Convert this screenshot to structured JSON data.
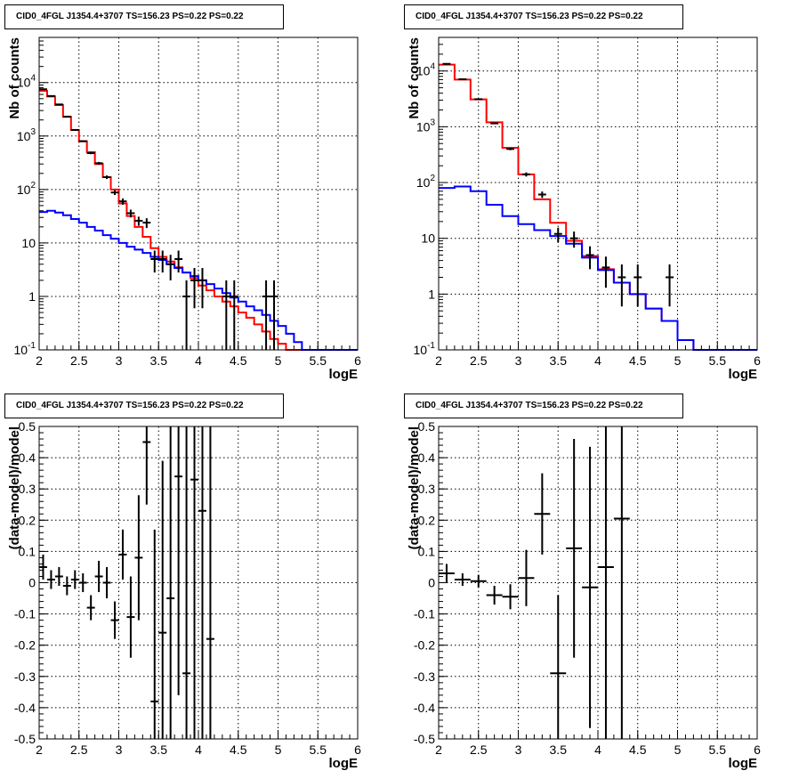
{
  "chart_data": [
    {
      "type": "line",
      "title": "CID0_4FGL J1354.4+3707 TS=156.23 PS=0.22 PS=0.22",
      "xlabel": "logE",
      "ylabel": "Nb of counts",
      "xlim": [
        2,
        6
      ],
      "ylim": [
        0.1,
        70000
      ],
      "yscale": "log",
      "grid": true,
      "x_ticks": [
        "2",
        "2.5",
        "3",
        "3.5",
        "4",
        "4.5",
        "5",
        "5.5",
        "6"
      ],
      "y_ticks": [
        "10^-1",
        "1",
        "10",
        "10^2",
        "10^3",
        "10^4"
      ],
      "series": [
        {
          "kind": "step",
          "color": "#ff0000",
          "bin_width": 0.1,
          "x": [
            2.0,
            2.1,
            2.2,
            2.3,
            2.4,
            2.5,
            2.6,
            2.7,
            2.8,
            2.9,
            3.0,
            3.1,
            3.2,
            3.3,
            3.4,
            3.5,
            3.6,
            3.7,
            3.8,
            3.9,
            4.0,
            4.1,
            4.2,
            4.3,
            4.4,
            4.5,
            4.6,
            4.7,
            4.8,
            4.9,
            5.0,
            5.1,
            5.2,
            5.3,
            5.4,
            5.5,
            5.6,
            5.7,
            5.8,
            5.9
          ],
          "values": [
            7000,
            5500,
            3800,
            2300,
            1300,
            800,
            500,
            300,
            170,
            100,
            55,
            32,
            20,
            13,
            8,
            5.5,
            4.5,
            3.5,
            2.8,
            2.2,
            1.6,
            1.3,
            1.0,
            0.8,
            0.65,
            0.5,
            0.4,
            0.3,
            0.22,
            0.16,
            0.13,
            0.1,
            0.1,
            0.1,
            0.1,
            0.1,
            0.1,
            0.1,
            0.1,
            0.1
          ]
        },
        {
          "kind": "step",
          "color": "#0000ff",
          "bin_width": 0.1,
          "x": [
            2.0,
            2.1,
            2.2,
            2.3,
            2.4,
            2.5,
            2.6,
            2.7,
            2.8,
            2.9,
            3.0,
            3.1,
            3.2,
            3.3,
            3.4,
            3.5,
            3.6,
            3.7,
            3.8,
            3.9,
            4.0,
            4.1,
            4.2,
            4.3,
            4.4,
            4.5,
            4.6,
            4.7,
            4.8,
            4.9,
            5.0,
            5.1,
            5.2,
            5.3,
            5.4,
            5.5,
            5.6,
            5.7,
            5.8,
            5.9
          ],
          "values": [
            38,
            40,
            37,
            33,
            28,
            24,
            20,
            17,
            14,
            12,
            10,
            8.5,
            7.5,
            6.5,
            5.5,
            4.8,
            4.0,
            3.4,
            2.8,
            2.4,
            2.0,
            1.7,
            1.4,
            1.15,
            0.95,
            0.8,
            0.65,
            0.55,
            0.45,
            0.35,
            0.28,
            0.2,
            0.14,
            0.1,
            0.1,
            0.1,
            0.1,
            0.1,
            0.1,
            0.1
          ]
        },
        {
          "kind": "points",
          "color": "#000000",
          "x": [
            2.05,
            2.15,
            2.25,
            2.35,
            2.45,
            2.55,
            2.65,
            2.75,
            2.85,
            2.95,
            3.05,
            3.15,
            3.25,
            3.35,
            3.45,
            3.55,
            3.65,
            3.75,
            3.85,
            3.95,
            4.05,
            4.15,
            4.25,
            4.35,
            4.45,
            4.55,
            4.65,
            4.75,
            4.85,
            4.95
          ],
          "values": [
            7500,
            5600,
            3900,
            2300,
            1300,
            800,
            480,
            310,
            170,
            88,
            60,
            36,
            26,
            24,
            5,
            5,
            4,
            5,
            1,
            2,
            2,
            null,
            null,
            1,
            1,
            null,
            null,
            null,
            1,
            1
          ],
          "errors": [
            90,
            75,
            62,
            48,
            36,
            28,
            22,
            18,
            13,
            9,
            8,
            6,
            5,
            5,
            2.2,
            2.2,
            2,
            2.2,
            1,
            1.4,
            1.4,
            null,
            null,
            1,
            1,
            null,
            null,
            null,
            1,
            1
          ]
        }
      ]
    },
    {
      "type": "line",
      "title": "CID0_4FGL J1354.4+3707 TS=156.23 PS=0.22 PS=0.22",
      "xlabel": "logE",
      "ylabel": "Nb of counts",
      "xlim": [
        2,
        6
      ],
      "ylim": [
        0.1,
        40000
      ],
      "yscale": "log",
      "grid": true,
      "x_ticks": [
        "2",
        "2.5",
        "3",
        "3.5",
        "4",
        "4.5",
        "5",
        "5.5",
        "6"
      ],
      "y_ticks": [
        "10^-1",
        "1",
        "10",
        "10^2",
        "10^3",
        "10^4"
      ],
      "series": [
        {
          "kind": "step",
          "color": "#ff0000",
          "bin_width": 0.2,
          "x": [
            2.0,
            2.2,
            2.4,
            2.6,
            2.8,
            3.0,
            3.2,
            3.4,
            3.6,
            3.8,
            4.0,
            4.2,
            4.4,
            4.6,
            4.8,
            5.0,
            5.2,
            5.4,
            5.6,
            5.8
          ],
          "values": [
            13000,
            7000,
            3100,
            1200,
            420,
            140,
            50,
            19,
            9,
            4.8,
            2.8,
            1.6,
            1.0,
            0.55,
            0.33,
            0.15,
            0.1,
            0.1,
            0.1,
            0.1
          ]
        },
        {
          "kind": "step",
          "color": "#0000ff",
          "bin_width": 0.2,
          "x": [
            2.0,
            2.2,
            2.4,
            2.6,
            2.8,
            3.0,
            3.2,
            3.4,
            3.6,
            3.8,
            4.0,
            4.2,
            4.4,
            4.6,
            4.8,
            5.0,
            5.2,
            5.4,
            5.6,
            5.8
          ],
          "values": [
            80,
            85,
            70,
            40,
            25,
            18,
            14,
            11,
            8,
            4.5,
            2.7,
            1.6,
            1.0,
            0.55,
            0.33,
            0.15,
            0.1,
            0.1,
            0.1,
            0.1
          ]
        },
        {
          "kind": "points",
          "color": "#000000",
          "x": [
            2.1,
            2.3,
            2.5,
            2.7,
            2.9,
            3.1,
            3.3,
            3.5,
            3.7,
            3.9,
            4.1,
            4.3,
            4.5,
            4.7,
            4.9
          ],
          "values": [
            13400,
            7100,
            3120,
            1150,
            400,
            140,
            61,
            12,
            10,
            5,
            3,
            2,
            2,
            null,
            2
          ],
          "errors": [
            116,
            84,
            56,
            34,
            20,
            12,
            8,
            3.5,
            3.2,
            2.2,
            1.7,
            1.4,
            1.4,
            null,
            1.4
          ]
        }
      ]
    },
    {
      "type": "scatter",
      "title": "CID0_4FGL J1354.4+3707 TS=156.23 PS=0.22 PS=0.22",
      "xlabel": "logE",
      "ylabel": "(data-model)/model",
      "xlim": [
        2,
        6
      ],
      "ylim": [
        -0.5,
        0.5
      ],
      "grid": true,
      "x_ticks": [
        "2",
        "2.5",
        "3",
        "3.5",
        "4",
        "4.5",
        "5",
        "5.5",
        "6"
      ],
      "y_ticks": [
        "-0.5",
        "-0.4",
        "-0.3",
        "-0.2",
        "-0.1",
        "0",
        "0.1",
        "0.2",
        "0.3",
        "0.4",
        "0.5"
      ],
      "series": [
        {
          "kind": "points",
          "color": "#000000",
          "x_half_width": 0.05,
          "x": [
            2.05,
            2.15,
            2.25,
            2.35,
            2.45,
            2.55,
            2.65,
            2.75,
            2.85,
            2.95,
            3.05,
            3.15,
            3.25,
            3.35,
            3.45,
            3.55,
            3.65,
            3.75,
            3.85,
            3.95,
            4.05,
            4.15
          ],
          "values": [
            0.05,
            0.01,
            0.02,
            -0.01,
            0.01,
            0.0,
            -0.08,
            0.02,
            0.0,
            -0.12,
            0.09,
            -0.11,
            0.08,
            0.45,
            -0.38,
            -0.16,
            -0.05,
            0.34,
            -0.29,
            0.33,
            0.23,
            -0.18
          ],
          "errors": [
            0.04,
            0.03,
            0.03,
            0.03,
            0.03,
            0.03,
            0.04,
            0.05,
            0.05,
            0.06,
            0.08,
            0.13,
            0.2,
            0.2,
            0.55,
            0.55,
            0.6,
            0.7,
            0.8,
            0.9,
            1.0,
            1.0
          ]
        }
      ]
    },
    {
      "type": "scatter",
      "title": "CID0_4FGL J1354.4+3707 TS=156.23 PS=0.22 PS=0.22",
      "xlabel": "logE",
      "ylabel": "(data-model)/model",
      "xlim": [
        2,
        6
      ],
      "ylim": [
        -0.5,
        0.5
      ],
      "grid": true,
      "x_ticks": [
        "2",
        "2.5",
        "3",
        "3.5",
        "4",
        "4.5",
        "5",
        "5.5",
        "6"
      ],
      "y_ticks": [
        "-0.5",
        "-0.4",
        "-0.3",
        "-0.2",
        "-0.1",
        "0",
        "0.1",
        "0.2",
        "0.3",
        "0.4",
        "0.5"
      ],
      "series": [
        {
          "kind": "points",
          "color": "#000000",
          "x_half_width": 0.1,
          "x": [
            2.1,
            2.3,
            2.5,
            2.7,
            2.9,
            3.1,
            3.3,
            3.5,
            3.7,
            3.9,
            4.1,
            4.3
          ],
          "values": [
            0.03,
            0.01,
            0.005,
            -0.04,
            -0.045,
            0.015,
            0.22,
            -0.29,
            0.11,
            -0.015,
            0.05,
            0.205
          ],
          "errors": [
            0.03,
            0.02,
            0.02,
            0.03,
            0.04,
            0.09,
            0.13,
            0.25,
            0.35,
            0.45,
            0.7,
            0.8
          ]
        }
      ]
    }
  ]
}
